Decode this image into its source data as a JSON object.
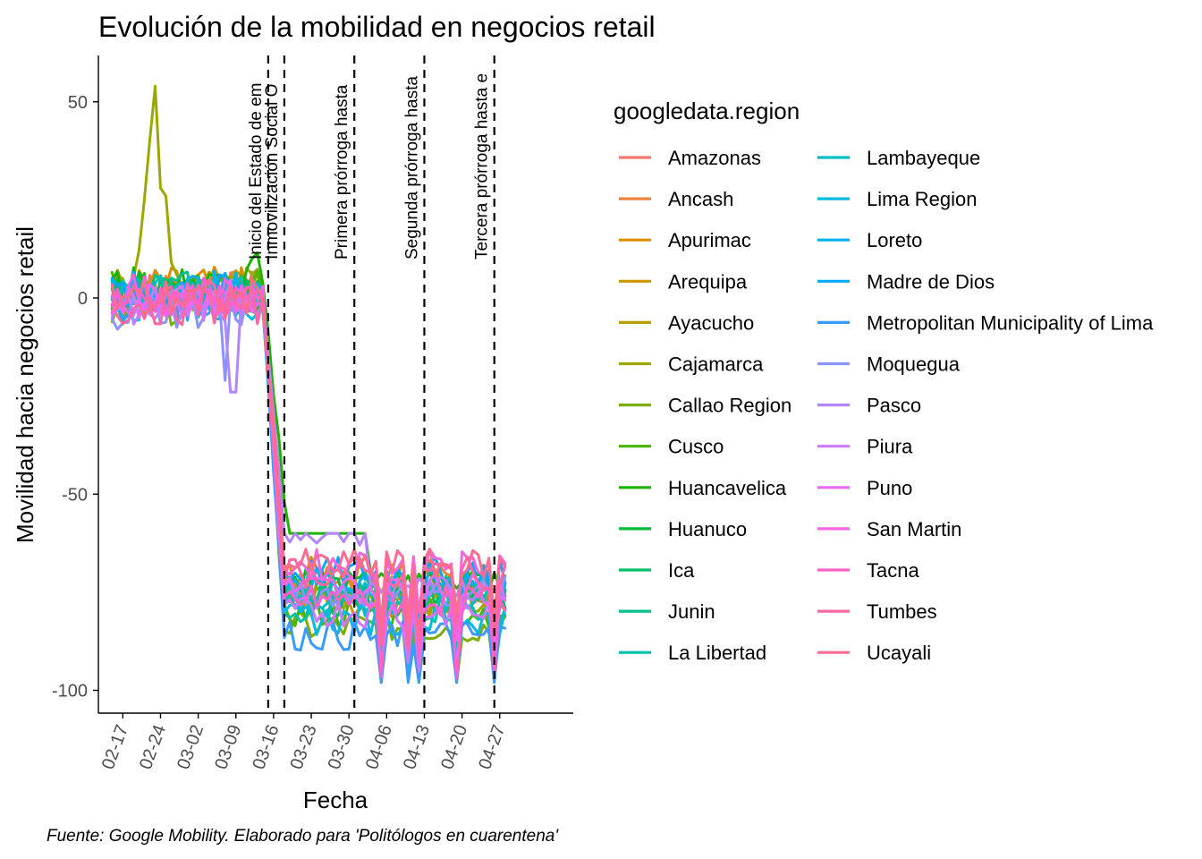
{
  "chart_data": {
    "type": "line",
    "title": "Evolución de la mobilidad en negocios retail",
    "xlabel": "Fecha",
    "ylabel": "Movilidad hacia negocios retail",
    "caption": "Fuente: Google Mobility. Elaborado para 'Politólogos en cuarentena'",
    "legend_title": "googledata.region",
    "legend_position": "right",
    "grid": false,
    "x_range": [
      "2020-02-15",
      "2020-04-29"
    ],
    "ylim": [
      -105,
      62
    ],
    "y_ticks": [
      50,
      0,
      -50,
      -100
    ],
    "y_tick_labels": [
      "50",
      "0",
      "-50",
      "-100"
    ],
    "x_ticks": [
      "2020-02-17",
      "2020-02-24",
      "2020-03-02",
      "2020-03-09",
      "2020-03-16",
      "2020-03-23",
      "2020-03-30",
      "2020-04-06",
      "2020-04-13",
      "2020-04-20",
      "2020-04-27"
    ],
    "x_tick_labels": [
      "02-17",
      "02-24",
      "03-02",
      "03-09",
      "03-16",
      "03-23",
      "03-30",
      "04-06",
      "04-13",
      "04-20",
      "04-27"
    ],
    "events": [
      {
        "date": "2020-03-15",
        "label": "Inicio del Estado de em"
      },
      {
        "date": "2020-03-18",
        "label": "Inmovilización Social O"
      },
      {
        "date": "2020-03-31",
        "label": "Primera prórroga hasta"
      },
      {
        "date": "2020-04-13",
        "label": "Segunda prórroga hasta"
      },
      {
        "date": "2020-04-26",
        "label": "Tercera prórroga hasta e"
      }
    ],
    "series_start": "2020-02-15",
    "series": [
      {
        "name": "Amazonas",
        "color": "#F8766D",
        "level": -75,
        "pre": 2
      },
      {
        "name": "Ancash",
        "color": "#EC823C",
        "level": -72,
        "pre": 1
      },
      {
        "name": "Apurimac",
        "color": "#DE8C00",
        "level": -70,
        "pre": 3
      },
      {
        "name": "Arequipa",
        "color": "#CD9600",
        "level": -78,
        "pre": 0
      },
      {
        "name": "Ayacucho",
        "color": "#B79F00",
        "level": -74,
        "pre": 2
      },
      {
        "name": "Cajamarca",
        "color": "#9CA700",
        "level": -76,
        "pre": 3
      },
      {
        "name": "Callao Region",
        "color": "#7CAE00",
        "level": -84,
        "pre": -2
      },
      {
        "name": "Cusco",
        "color": "#49B500",
        "level": -80,
        "pre": 2
      },
      {
        "name": "Huancavelica",
        "color": "#1CB200",
        "level": -50,
        "pre": 3
      },
      {
        "name": "Huanuco",
        "color": "#00BA38",
        "level": -73,
        "pre": 2
      },
      {
        "name": "Ica",
        "color": "#00BE67",
        "level": -77,
        "pre": 1
      },
      {
        "name": "Junin",
        "color": "#00C08B",
        "level": -74,
        "pre": 2
      },
      {
        "name": "La Libertad",
        "color": "#00C1A9",
        "level": -79,
        "pre": 0
      },
      {
        "name": "Lambayeque",
        "color": "#00BFC4",
        "level": -76,
        "pre": 1
      },
      {
        "name": "Lima Region",
        "color": "#00BAE0",
        "level": -82,
        "pre": -1
      },
      {
        "name": "Loreto",
        "color": "#00B2F2",
        "level": -72,
        "pre": 2
      },
      {
        "name": "Madre de Dios",
        "color": "#00A9FF",
        "level": -70,
        "pre": 1
      },
      {
        "name": "Metropolitan Municipality of Lima",
        "color": "#3A9BFF",
        "level": -86,
        "pre": -1
      },
      {
        "name": "Moquegua",
        "color": "#8B93FF",
        "level": -75,
        "pre": -3
      },
      {
        "name": "Pasco",
        "color": "#B385FF",
        "level": -59,
        "pre": -2
      },
      {
        "name": "Piura",
        "color": "#CF78FF",
        "level": -80,
        "pre": -1
      },
      {
        "name": "Puno",
        "color": "#E76BF3",
        "level": -74,
        "pre": 0
      },
      {
        "name": "San Martin",
        "color": "#F564E3",
        "level": -68,
        "pre": 1
      },
      {
        "name": "Tacna",
        "color": "#FF61C9",
        "level": -77,
        "pre": 0
      },
      {
        "name": "Tumbes",
        "color": "#FF67A4",
        "level": -70,
        "pre": -2
      },
      {
        "name": "Ucayali",
        "color": "#FF6C91",
        "level": -68,
        "pre": 0
      }
    ]
  }
}
